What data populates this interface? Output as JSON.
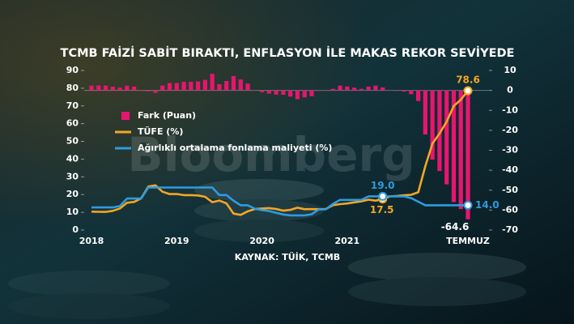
{
  "chart_data": {
    "type": "combo",
    "title": "TCMB FAİZİ SABİT BIRAKTI, ENFLASYON İLE MAKAS REKOR SEVİYEDE",
    "source": "KAYNAK: TÜİK, TCMB",
    "watermark": "Bloomberg",
    "categories": [
      "2018",
      null,
      null,
      null,
      null,
      null,
      null,
      null,
      null,
      null,
      null,
      null,
      "2019",
      null,
      null,
      null,
      null,
      null,
      null,
      null,
      null,
      null,
      null,
      null,
      "2020",
      null,
      null,
      null,
      null,
      null,
      null,
      null,
      null,
      null,
      null,
      null,
      "2021",
      null,
      null,
      null,
      null,
      null,
      null,
      null,
      null,
      null,
      null,
      null,
      null,
      null,
      null,
      null,
      null,
      "TEMMUZ"
    ],
    "ylim": [
      0,
      90
    ],
    "yticks": [
      0,
      10,
      20,
      30,
      40,
      50,
      60,
      70,
      80,
      90
    ],
    "y2lim": [
      -70,
      10
    ],
    "y2ticks": [
      10,
      0,
      -10,
      -20,
      -30,
      -40,
      -50,
      -60,
      -70
    ],
    "series": [
      {
        "name": "Fark (Puan)",
        "type": "bar",
        "axis": "y2",
        "color": "#e8156f",
        "values": [
          2.4,
          2.5,
          2.5,
          1.9,
          1.4,
          2.4,
          1.9,
          -0.2,
          -0.5,
          -1.2,
          2.4,
          3.7,
          3.7,
          4.3,
          4.3,
          4.5,
          5.3,
          8.3,
          3.1,
          4.7,
          7.2,
          5.5,
          3.4,
          0.2,
          -0.9,
          -1.6,
          -2.1,
          -2.2,
          -3.1,
          -4.4,
          -3.5,
          -2.9,
          -0.2,
          -0.2,
          0.8,
          2.4,
          2.0,
          1.4,
          0.8,
          1.9,
          2.4,
          1.5,
          0.1,
          -0.3,
          -0.6,
          -1.9,
          -5.3,
          -22.1,
          -34.7,
          -40.4,
          -47.1,
          -56.0,
          -59.5,
          -64.6
        ],
        "value_labels": [
          null,
          null,
          null,
          null,
          null,
          null,
          null,
          null,
          null,
          null,
          null,
          null,
          null,
          null,
          null,
          null,
          null,
          null,
          null,
          null,
          null,
          null,
          null,
          null,
          null,
          null,
          null,
          null,
          null,
          null,
          null,
          null,
          null,
          null,
          null,
          null,
          null,
          null,
          null,
          null,
          null,
          null,
          null,
          null,
          null,
          null,
          null,
          null,
          null,
          null,
          null,
          null,
          null,
          "-64.6"
        ]
      },
      {
        "name": "TÜFE (%)",
        "type": "line",
        "axis": "y",
        "color": "#f5a623",
        "values": [
          10.35,
          10.26,
          10.23,
          10.85,
          12.15,
          15.39,
          15.85,
          17.9,
          24.52,
          25.24,
          21.62,
          20.3,
          20.35,
          19.67,
          19.71,
          19.5,
          18.71,
          15.72,
          16.65,
          15.01,
          9.26,
          8.55,
          10.56,
          11.84,
          12.15,
          12.37,
          11.86,
          10.94,
          11.39,
          12.62,
          11.76,
          11.77,
          11.75,
          11.89,
          14.03,
          14.6,
          14.97,
          15.61,
          16.19,
          17.14,
          16.59,
          17.5,
          18.95,
          19.25,
          19.58,
          19.89,
          21.31,
          36.08,
          48.69,
          54.44,
          61.14,
          69.97,
          73.5,
          78.6
        ],
        "value_labels": [
          null,
          null,
          null,
          null,
          null,
          null,
          null,
          null,
          null,
          null,
          null,
          null,
          null,
          null,
          null,
          null,
          null,
          null,
          null,
          null,
          null,
          null,
          null,
          null,
          null,
          null,
          null,
          null,
          null,
          null,
          null,
          null,
          null,
          null,
          null,
          null,
          null,
          null,
          null,
          null,
          null,
          "17.5",
          null,
          null,
          null,
          null,
          null,
          null,
          null,
          null,
          null,
          null,
          null,
          "78.6"
        ]
      },
      {
        "name": "Ağırlıklı ortalama fonlama maliyeti (%)",
        "type": "line",
        "axis": "y",
        "color": "#2e9be0",
        "values": [
          12.75,
          12.75,
          12.75,
          12.75,
          13.5,
          17.75,
          17.75,
          17.75,
          24,
          24,
          24,
          24,
          24,
          24,
          24,
          24,
          24,
          24,
          19.75,
          19.75,
          16.5,
          14,
          14,
          12,
          11.25,
          10.75,
          9.75,
          8.75,
          8.25,
          8.25,
          8.25,
          8.9,
          11.6,
          11.7,
          14.8,
          17,
          17,
          17,
          17,
          19,
          19,
          19,
          19,
          19,
          19,
          18,
          16,
          14,
          14,
          14,
          14,
          14,
          14,
          14
        ],
        "value_labels": [
          null,
          null,
          null,
          null,
          null,
          null,
          null,
          null,
          null,
          null,
          null,
          null,
          null,
          null,
          null,
          null,
          null,
          null,
          null,
          null,
          null,
          null,
          null,
          null,
          null,
          null,
          null,
          null,
          null,
          null,
          null,
          null,
          null,
          null,
          null,
          null,
          null,
          null,
          null,
          null,
          null,
          "19.0",
          null,
          null,
          null,
          null,
          null,
          null,
          null,
          null,
          null,
          null,
          null,
          "14.0"
        ]
      }
    ]
  }
}
